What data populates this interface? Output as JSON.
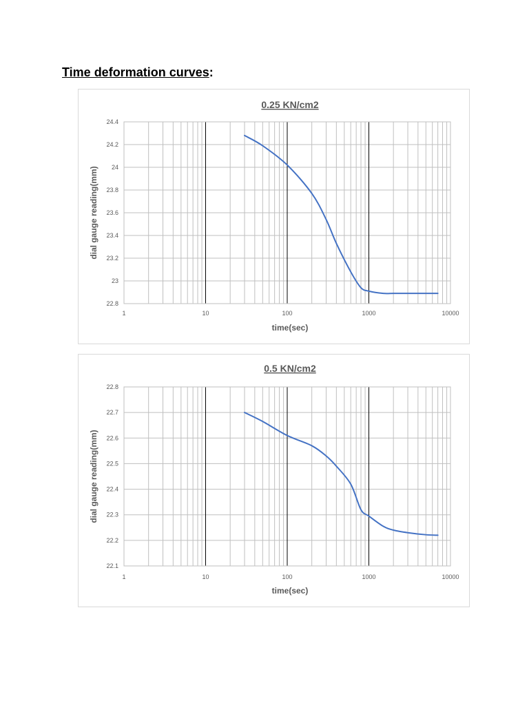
{
  "heading": {
    "text": "Time deformation curves",
    "suffix": ":"
  },
  "colors": {
    "series": "#4472c4",
    "major_grid": "#000000",
    "minor_grid": "#bfbfbf",
    "text": "#595959"
  },
  "chart_data": [
    {
      "type": "line",
      "title": "0.25 KN/cm2",
      "xlabel": "time(sec)",
      "ylabel": "dial gauge reading(mm)",
      "xscale": "log",
      "xlim": [
        1,
        10000
      ],
      "ylim": [
        22.8,
        24.4
      ],
      "xticks": [
        "1",
        "10",
        "100",
        "1000",
        "10000"
      ],
      "yticks": [
        "22.8",
        "23",
        "23.2",
        "23.4",
        "23.6",
        "23.8",
        "24",
        "24.2",
        "24.4"
      ],
      "grid": true,
      "legend": "none",
      "series": [
        {
          "x": [
            30,
            50,
            100,
            200,
            300,
            400,
            600,
            800,
            1000,
            1500,
            2000,
            3000,
            5000,
            7000
          ],
          "y": [
            24.28,
            24.19,
            24.02,
            23.77,
            23.54,
            23.33,
            23.08,
            22.94,
            22.91,
            22.89,
            22.89,
            22.89,
            22.89,
            22.89
          ]
        }
      ]
    },
    {
      "type": "line",
      "title": "0.5 KN/cm2",
      "xlabel": "time(sec)",
      "ylabel": "dial gauge reading(mm)",
      "xscale": "log",
      "xlim": [
        1,
        10000
      ],
      "ylim": [
        22.1,
        22.8
      ],
      "xticks": [
        "1",
        "10",
        "100",
        "1000",
        "10000"
      ],
      "yticks": [
        "22.1",
        "22.2",
        "22.3",
        "22.4",
        "22.5",
        "22.6",
        "22.7",
        "22.8"
      ],
      "grid": true,
      "legend": "none",
      "series": [
        {
          "x": [
            30,
            50,
            100,
            200,
            300,
            400,
            600,
            800,
            1000,
            1500,
            2000,
            3000,
            5000,
            7000
          ],
          "y": [
            22.7,
            22.665,
            22.61,
            22.57,
            22.53,
            22.49,
            22.42,
            22.32,
            22.295,
            22.255,
            22.24,
            22.23,
            22.222,
            22.22
          ]
        }
      ]
    }
  ]
}
